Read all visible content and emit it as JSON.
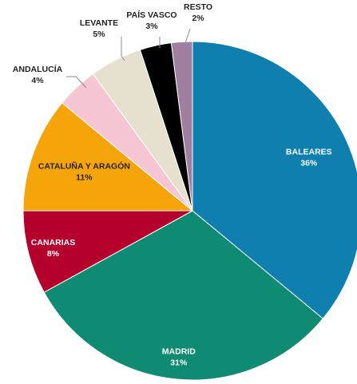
{
  "chart_data": {
    "type": "pie",
    "title": "",
    "start_angle_deg": 0,
    "direction": "clockwise",
    "categories": [
      "BALEARES",
      "MADRID",
      "CANARIAS",
      "CATALUÑA Y ARAGÓN",
      "ANDALUCÍA",
      "LEVANTE",
      "PAÍS VASCO",
      "RESTO"
    ],
    "values": [
      36,
      31,
      8,
      11,
      4,
      5,
      3,
      2
    ],
    "value_labels": [
      "36%",
      "31%",
      "8%",
      "11%",
      "4%",
      "5%",
      "3%",
      "2%"
    ],
    "colors": [
      "#0E7FAF",
      "#0F8A73",
      "#B5002E",
      "#F5A509",
      "#F7C6D4",
      "#E6E0CF",
      "#000000",
      "#A07FA0"
    ],
    "legend": "none",
    "labels_inside": [
      "BALEARES",
      "MADRID",
      "CANARIAS",
      "CATALUÑA Y ARAGÓN"
    ],
    "label_text_colors": {
      "BALEARES": "light",
      "MADRID": "light",
      "CANARIAS": "light",
      "CATALUÑA Y ARAGÓN": "dark"
    },
    "labels_outside": [
      "ANDALUCÍA",
      "LEVANTE",
      "PAÍS VASCO",
      "RESTO"
    ]
  }
}
